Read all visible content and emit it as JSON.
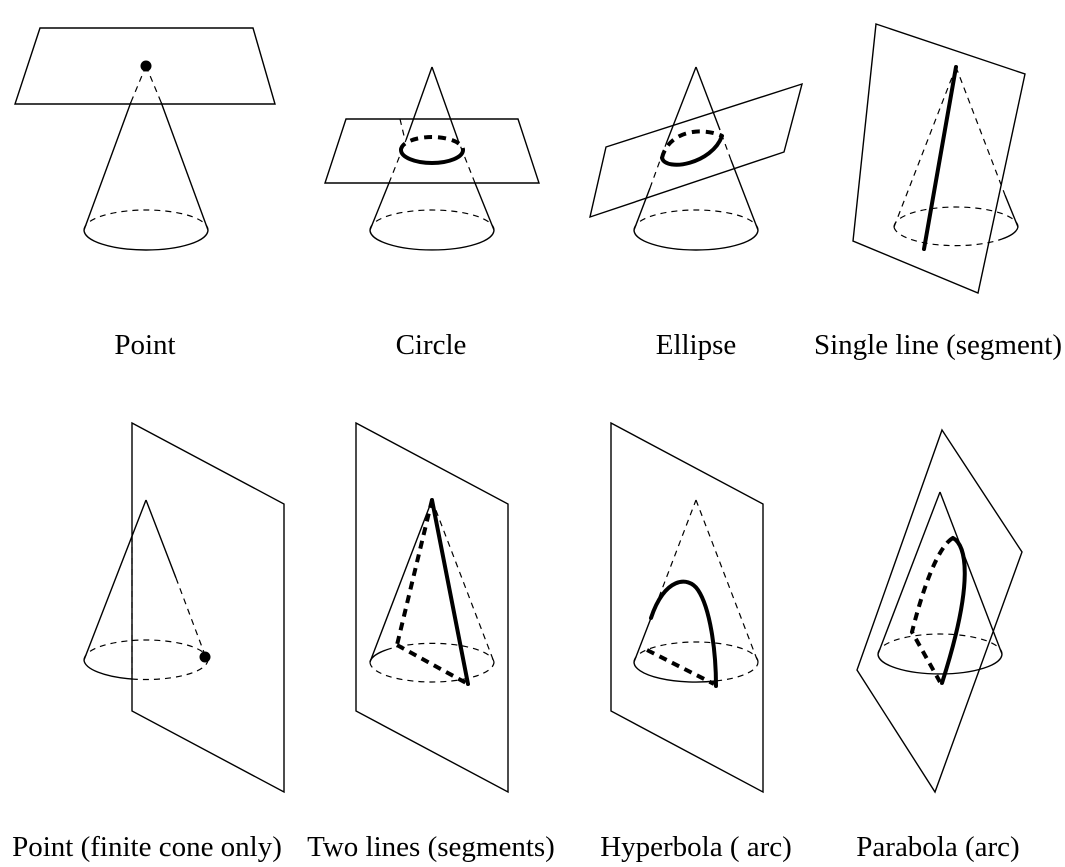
{
  "panels": [
    {
      "id": "point",
      "caption": "Point"
    },
    {
      "id": "circle",
      "caption": "Circle"
    },
    {
      "id": "ellipse",
      "caption": "Ellipse"
    },
    {
      "id": "single-line",
      "caption": "Single line (segment)"
    },
    {
      "id": "point-finite",
      "caption": "Point (finite cone only)"
    },
    {
      "id": "two-lines",
      "caption": "Two lines (segments)"
    },
    {
      "id": "hyperbola",
      "caption": "Hyperbola ( arc)"
    },
    {
      "id": "parabola",
      "caption": "Parabola (arc)"
    }
  ]
}
